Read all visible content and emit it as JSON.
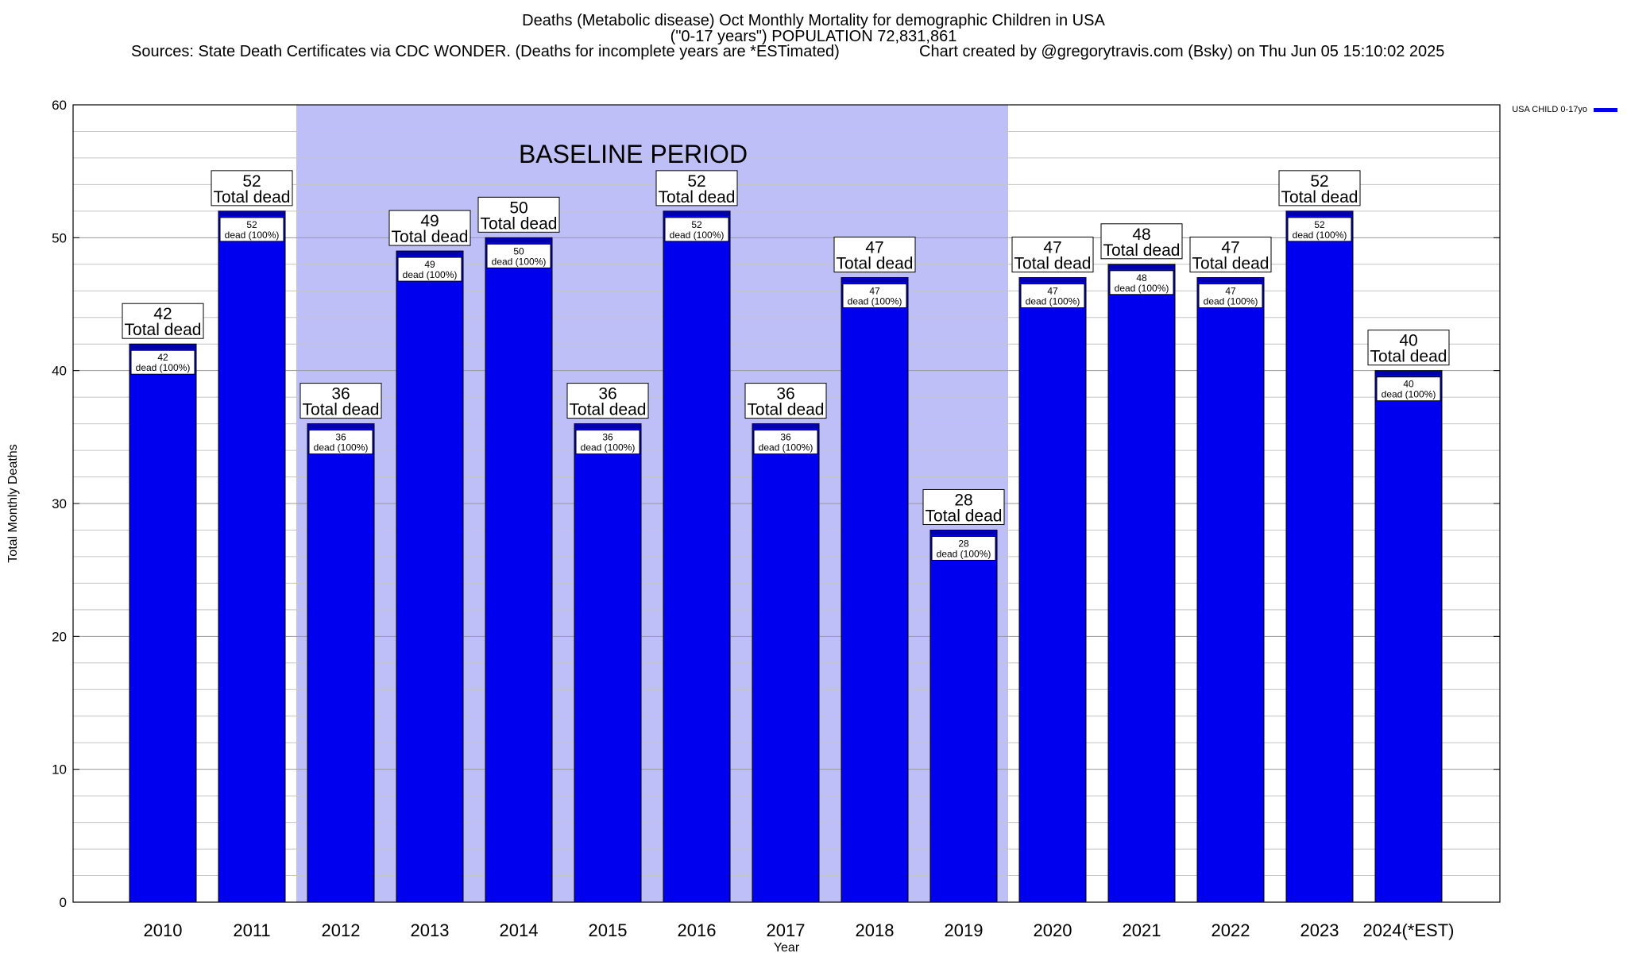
{
  "header": {
    "title_line1": "Deaths (Metabolic disease) Oct Monthly Mortality for demographic Children in USA",
    "title_line2": "(\"0-17 years\") POPULATION 72,831,861",
    "sources_line": "Sources: State Death Certificates via CDC WONDER. (Deaths for incomplete years are *ESTimated)",
    "credit_line": "Chart created by @gregorytravis.com (Bsky) on Thu Jun 05 15:10:02 2025"
  },
  "chart_data": {
    "type": "bar",
    "categories": [
      "2010",
      "2011",
      "2012",
      "2013",
      "2014",
      "2015",
      "2016",
      "2017",
      "2018",
      "2019",
      "2020",
      "2021",
      "2022",
      "2023",
      "2024(*EST)"
    ],
    "series": [
      {
        "name": "USA CHILD 0-17yo",
        "values": [
          42,
          52,
          36,
          49,
          50,
          36,
          52,
          36,
          47,
          28,
          47,
          48,
          47,
          52,
          40
        ],
        "color": "#0000ee"
      }
    ],
    "xlabel": "Year",
    "ylabel": "Total Monthly Deaths",
    "ylim": [
      0,
      60
    ],
    "yticks": [
      0,
      10,
      20,
      30,
      40,
      50,
      60
    ],
    "minor_grid_step": 2,
    "grid": true,
    "legend_position": "top-right",
    "baseline_region": {
      "label": "BASELINE PERIOD",
      "from_category": "2012",
      "to_category": "2019",
      "color": "#bfbff8"
    },
    "top_label_suffix": "Total dead",
    "inner_label_suffix": "dead (100%)"
  }
}
